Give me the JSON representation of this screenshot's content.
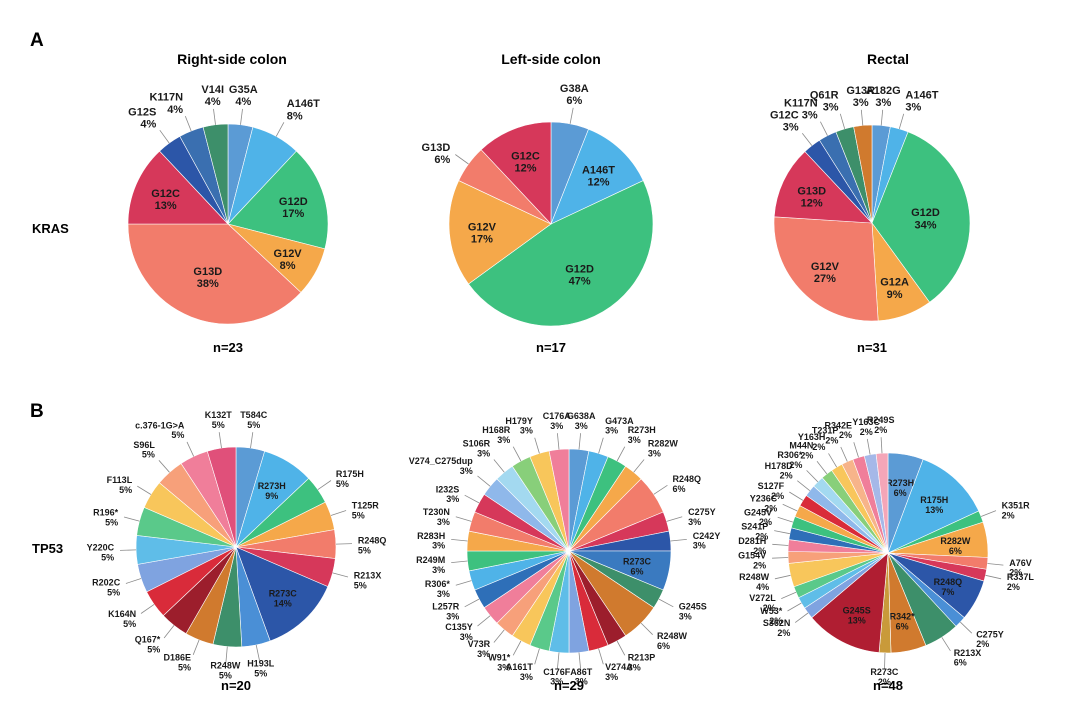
{
  "panels": {
    "a": "A",
    "b": "B"
  },
  "column_titles": [
    "Right-side colon",
    "Left-side colon",
    "Rectal"
  ],
  "row_labels": {
    "kras": "KRAS",
    "tp53": "TP53"
  },
  "colors": {
    "blue_light": "#5b9bd5",
    "sky": "#4fb3e8",
    "green": "#3dc17f",
    "orange": "#f5a84a",
    "salmon": "#f27c6b",
    "crimson": "#d6385a",
    "navy": "#2c56a8",
    "teal": "#3d8f6a",
    "pink": "#f07e9a",
    "yellow": "#f8c65b",
    "lime": "#88cf7a",
    "red": "#d92b3a",
    "darkred": "#9c1e2c",
    "purple": "#8a6ac3",
    "peach": "#f7b48a",
    "lavender": "#a5b8e8",
    "rust": "#d07a2e",
    "ochre": "#c99a3a"
  },
  "chart_data": [
    {
      "type": "pie",
      "gene": "KRAS",
      "site": "Right-side colon",
      "n_label": "n=23",
      "slices": [
        {
          "name": "G35A",
          "value": 4,
          "label": "4%",
          "color": "#5b9bd5",
          "outside": true
        },
        {
          "name": "A146T",
          "value": 8,
          "label": "8%",
          "color": "#4fb3e8",
          "outside": true
        },
        {
          "name": "G12D",
          "value": 17,
          "label": "17%",
          "color": "#3dc17f",
          "outside": false
        },
        {
          "name": "G12V",
          "value": 8,
          "label": "8%",
          "color": "#f5a84a",
          "outside": false
        },
        {
          "name": "G13D",
          "value": 38,
          "label": "38%",
          "color": "#f27c6b",
          "outside": false
        },
        {
          "name": "G12C",
          "value": 13,
          "label": "13%",
          "color": "#d6385a",
          "outside": false
        },
        {
          "name": "G12S",
          "value": 4,
          "label": "4%",
          "color": "#2c56a8",
          "outside": true
        },
        {
          "name": "K117N",
          "value": 4,
          "label": "4%",
          "color": "#3a6fb0",
          "outside": true
        },
        {
          "name": "V14I",
          "value": 4,
          "label": "4%",
          "color": "#3d8f6a",
          "outside": true
        }
      ]
    },
    {
      "type": "pie",
      "gene": "KRAS",
      "site": "Left-side colon",
      "n_label": "n=17",
      "slices": [
        {
          "name": "G38A",
          "value": 6,
          "label": "6%",
          "color": "#5b9bd5",
          "outside": true
        },
        {
          "name": "A146T",
          "value": 12,
          "label": "12%",
          "color": "#4fb3e8",
          "outside": false
        },
        {
          "name": "G12D",
          "value": 47,
          "label": "47%",
          "color": "#3dc17f",
          "outside": false
        },
        {
          "name": "G12V",
          "value": 17,
          "label": "17%",
          "color": "#f5a84a",
          "outside": false
        },
        {
          "name": "G13D",
          "value": 6,
          "label": "6%",
          "color": "#f27c6b",
          "outside": true
        },
        {
          "name": "G12C",
          "value": 12,
          "label": "12%",
          "color": "#d6385a",
          "outside": false
        }
      ]
    },
    {
      "type": "pie",
      "gene": "KRAS",
      "site": "Rectal",
      "n_label": "n=31",
      "slices": [
        {
          "name": "A182G",
          "value": 3,
          "label": "3%",
          "color": "#5b9bd5",
          "outside": true
        },
        {
          "name": "A146T",
          "value": 3,
          "label": "3%",
          "color": "#4fb3e8",
          "outside": true
        },
        {
          "name": "G12D",
          "value": 34,
          "label": "34%",
          "color": "#3dc17f",
          "outside": false
        },
        {
          "name": "G12A",
          "value": 9,
          "label": "9%",
          "color": "#f5a84a",
          "outside": false
        },
        {
          "name": "G12V",
          "value": 27,
          "label": "27%",
          "color": "#f27c6b",
          "outside": false
        },
        {
          "name": "G13D",
          "value": 12,
          "label": "12%",
          "color": "#d6385a",
          "outside": false
        },
        {
          "name": "G12C",
          "value": 3,
          "label": "3%",
          "color": "#2c56a8",
          "outside": true
        },
        {
          "name": "K117N",
          "value": 3,
          "label": "3%",
          "color": "#3a6fb0",
          "outside": true
        },
        {
          "name": "Q61R",
          "value": 3,
          "label": "3%",
          "color": "#3d8f6a",
          "outside": true
        },
        {
          "name": "G13R",
          "value": 3,
          "label": "3%",
          "color": "#d07a2e",
          "outside": true
        }
      ]
    },
    {
      "type": "pie",
      "gene": "TP53",
      "site": "Right-side colon",
      "n_label": "n=20",
      "slices": [
        {
          "name": "T584C",
          "value": 5,
          "label": "5%",
          "color": "#5b9bd5",
          "outside": true
        },
        {
          "name": "R273H",
          "value": 9,
          "label": "9%",
          "color": "#4fb3e8",
          "outside": false
        },
        {
          "name": "R175H",
          "value": 5,
          "label": "5%",
          "color": "#3dc17f",
          "outside": true
        },
        {
          "name": "T125R",
          "value": 5,
          "label": "5%",
          "color": "#f5a84a",
          "outside": true
        },
        {
          "name": "R248Q",
          "value": 5,
          "label": "5%",
          "color": "#f27c6b",
          "outside": true
        },
        {
          "name": "R213X",
          "value": 5,
          "label": "5%",
          "color": "#d6385a",
          "outside": true
        },
        {
          "name": "R273C",
          "value": 14,
          "label": "14%",
          "color": "#2c56a8",
          "outside": false
        },
        {
          "name": "H193L",
          "value": 5,
          "label": "5%",
          "color": "#4a8fd6",
          "outside": true
        },
        {
          "name": "R248W",
          "value": 5,
          "label": "5%",
          "color": "#3d8f6a",
          "outside": true
        },
        {
          "name": "D186E",
          "value": 5,
          "label": "5%",
          "color": "#d07a2e",
          "outside": true
        },
        {
          "name": "Q167*",
          "value": 5,
          "label": "5%",
          "color": "#9c1e2c",
          "outside": true
        },
        {
          "name": "K164N",
          "value": 5,
          "label": "5%",
          "color": "#d92b3a",
          "outside": true
        },
        {
          "name": "R202C",
          "value": 5,
          "label": "5%",
          "color": "#7fa3e0",
          "outside": true
        },
        {
          "name": "Y220C",
          "value": 5,
          "label": "5%",
          "color": "#5fbde8",
          "outside": true
        },
        {
          "name": "R196*",
          "value": 5,
          "label": "5%",
          "color": "#5ac98a",
          "outside": true
        },
        {
          "name": "F113L",
          "value": 5,
          "label": "5%",
          "color": "#f8c65b",
          "outside": true
        },
        {
          "name": "S96L",
          "value": 5,
          "label": "5%",
          "color": "#f7a07a",
          "outside": true
        },
        {
          "name": "c.376-1G>A",
          "value": 5,
          "label": "5%",
          "color": "#f07e9a",
          "outside": true
        },
        {
          "name": "K132T",
          "value": 5,
          "label": "5%",
          "color": "#e0507a",
          "outside": true
        }
      ]
    },
    {
      "type": "pie",
      "gene": "TP53",
      "site": "Left-side colon",
      "n_label": "n=29",
      "slices": [
        {
          "name": "G638A",
          "value": 3,
          "label": "3%",
          "color": "#5b9bd5",
          "outside": true
        },
        {
          "name": "G473A",
          "value": 3,
          "label": "3%",
          "color": "#4fb3e8",
          "outside": true
        },
        {
          "name": "R273H",
          "value": 3,
          "label": "3%",
          "color": "#3dc17f",
          "outside": true
        },
        {
          "name": "R282W",
          "value": 3,
          "label": "3%",
          "color": "#f5a84a",
          "outside": true
        },
        {
          "name": "R248Q",
          "value": 6,
          "label": "6%",
          "color": "#f27c6b",
          "outside": true
        },
        {
          "name": "C275Y",
          "value": 3,
          "label": "3%",
          "color": "#d6385a",
          "outside": true
        },
        {
          "name": "C242Y",
          "value": 3,
          "label": "3%",
          "color": "#2c56a8",
          "outside": true
        },
        {
          "name": "R273C",
          "value": 6,
          "label": "6%",
          "color": "#3a7ac0",
          "outside": false
        },
        {
          "name": "G245S",
          "value": 3,
          "label": "3%",
          "color": "#3d8f6a",
          "outside": true
        },
        {
          "name": "R248W",
          "value": 6,
          "label": "6%",
          "color": "#d07a2e",
          "outside": true
        },
        {
          "name": "R213P",
          "value": 3,
          "label": "3%",
          "color": "#9c1e2c",
          "outside": true
        },
        {
          "name": "V274A",
          "value": 3,
          "label": "3%",
          "color": "#d92b3a",
          "outside": true
        },
        {
          "name": "A86T",
          "value": 3,
          "label": "3%",
          "color": "#7fa3e0",
          "outside": true
        },
        {
          "name": "C176F",
          "value": 3,
          "label": "3%",
          "color": "#5fbde8",
          "outside": true
        },
        {
          "name": "A161T",
          "value": 3,
          "label": "3%",
          "color": "#5ac98a",
          "outside": true
        },
        {
          "name": "W91*",
          "value": 3,
          "label": "3%",
          "color": "#f8c65b",
          "outside": true
        },
        {
          "name": "V73R",
          "value": 3,
          "label": "3%",
          "color": "#f7a07a",
          "outside": true
        },
        {
          "name": "C135Y",
          "value": 3,
          "label": "3%",
          "color": "#f07e9a",
          "outside": true
        },
        {
          "name": "L257R",
          "value": 3,
          "label": "3%",
          "color": "#2e6fb8",
          "outside": true
        },
        {
          "name": "R306*",
          "value": 3,
          "label": "3%",
          "color": "#4fb3e8",
          "outside": true
        },
        {
          "name": "R249M",
          "value": 3,
          "label": "3%",
          "color": "#3dc17f",
          "outside": true
        },
        {
          "name": "R283H",
          "value": 3,
          "label": "3%",
          "color": "#f5a84a",
          "outside": true
        },
        {
          "name": "T230N",
          "value": 3,
          "label": "3%",
          "color": "#f27c6b",
          "outside": true
        },
        {
          "name": "I232S",
          "value": 3,
          "label": "3%",
          "color": "#d6385a",
          "outside": true
        },
        {
          "name": "V274_C275dup",
          "value": 3,
          "label": "3%",
          "color": "#8fb8ea",
          "outside": true
        },
        {
          "name": "S106R",
          "value": 3,
          "label": "3%",
          "color": "#a3d9f0",
          "outside": true
        },
        {
          "name": "H168R",
          "value": 3,
          "label": "3%",
          "color": "#88cf7a",
          "outside": true
        },
        {
          "name": "H179Y",
          "value": 3,
          "label": "3%",
          "color": "#f8c65b",
          "outside": true
        },
        {
          "name": "C176A",
          "value": 3,
          "label": "3%",
          "color": "#f07e9a",
          "outside": true
        }
      ]
    },
    {
      "type": "pie",
      "gene": "TP53",
      "site": "Rectal",
      "n_label": "n=48",
      "slices": [
        {
          "name": "R273H",
          "value": 6,
          "label": "6%",
          "color": "#5b9bd5",
          "outside": false
        },
        {
          "name": "R175H",
          "value": 13,
          "label": "13%",
          "color": "#4fb3e8",
          "outside": false
        },
        {
          "name": "K351R",
          "value": 2,
          "label": "2%",
          "color": "#3dc17f",
          "outside": true
        },
        {
          "name": "R282W",
          "value": 6,
          "label": "6%",
          "color": "#f5a84a",
          "outside": false
        },
        {
          "name": "A76V",
          "value": 2,
          "label": "2%",
          "color": "#f27c6b",
          "outside": true
        },
        {
          "name": "R337L",
          "value": 2,
          "label": "2%",
          "color": "#d6385a",
          "outside": true
        },
        {
          "name": "R248Q",
          "value": 7,
          "label": "7%",
          "color": "#2c56a8",
          "outside": false
        },
        {
          "name": "C275Y",
          "value": 2,
          "label": "2%",
          "color": "#4a8fd6",
          "outside": true
        },
        {
          "name": "R213X",
          "value": 6,
          "label": "6%",
          "color": "#3d8f6a",
          "outside": true
        },
        {
          "name": "R342*",
          "value": 6,
          "label": "6%",
          "color": "#d07a2e",
          "outside": false
        },
        {
          "name": "R273C",
          "value": 2,
          "label": "2%",
          "color": "#c99a3a",
          "outside": true
        },
        {
          "name": "G245S",
          "value": 13,
          "label": "13%",
          "color": "#b01e32",
          "outside": false
        },
        {
          "name": "S362N",
          "value": 2,
          "label": "2%",
          "color": "#7fa3e0",
          "outside": true
        },
        {
          "name": "W53*",
          "value": 2,
          "label": "2%",
          "color": "#5fbde8",
          "outside": true
        },
        {
          "name": "V272L",
          "value": 2,
          "label": "2%",
          "color": "#5ac98a",
          "outside": true
        },
        {
          "name": "R248W",
          "value": 4,
          "label": "4%",
          "color": "#f8c65b",
          "outside": true
        },
        {
          "name": "G154V",
          "value": 2,
          "label": "2%",
          "color": "#f7a07a",
          "outside": true
        },
        {
          "name": "D281H",
          "value": 2,
          "label": "2%",
          "color": "#f07e9a",
          "outside": true
        },
        {
          "name": "S241P",
          "value": 2,
          "label": "2%",
          "color": "#2e6fb8",
          "outside": true
        },
        {
          "name": "G245V",
          "value": 2,
          "label": "2%",
          "color": "#3dc17f",
          "outside": true
        },
        {
          "name": "Y236C",
          "value": 2,
          "label": "2%",
          "color": "#f5a84a",
          "outside": true
        },
        {
          "name": "S127F",
          "value": 2,
          "label": "2%",
          "color": "#d92b3a",
          "outside": true
        },
        {
          "name": "H178D",
          "value": 2,
          "label": "2%",
          "color": "#8fb8ea",
          "outside": true
        },
        {
          "name": "R306*",
          "value": 2,
          "label": "2%",
          "color": "#a3d9f0",
          "outside": true
        },
        {
          "name": "M44N",
          "value": 2,
          "label": "2%",
          "color": "#88cf7a",
          "outside": true
        },
        {
          "name": "Y163H",
          "value": 2,
          "label": "2%",
          "color": "#f8c65b",
          "outside": true
        },
        {
          "name": "T231P",
          "value": 2,
          "label": "2%",
          "color": "#f7b48a",
          "outside": true
        },
        {
          "name": "R342E",
          "value": 2,
          "label": "2%",
          "color": "#f07e9a",
          "outside": true
        },
        {
          "name": "Y163C",
          "value": 2,
          "label": "2%",
          "color": "#a5b8e8",
          "outside": true
        },
        {
          "name": "R249S",
          "value": 2,
          "label": "2%",
          "color": "#f4a6b8",
          "outside": true
        }
      ]
    }
  ]
}
